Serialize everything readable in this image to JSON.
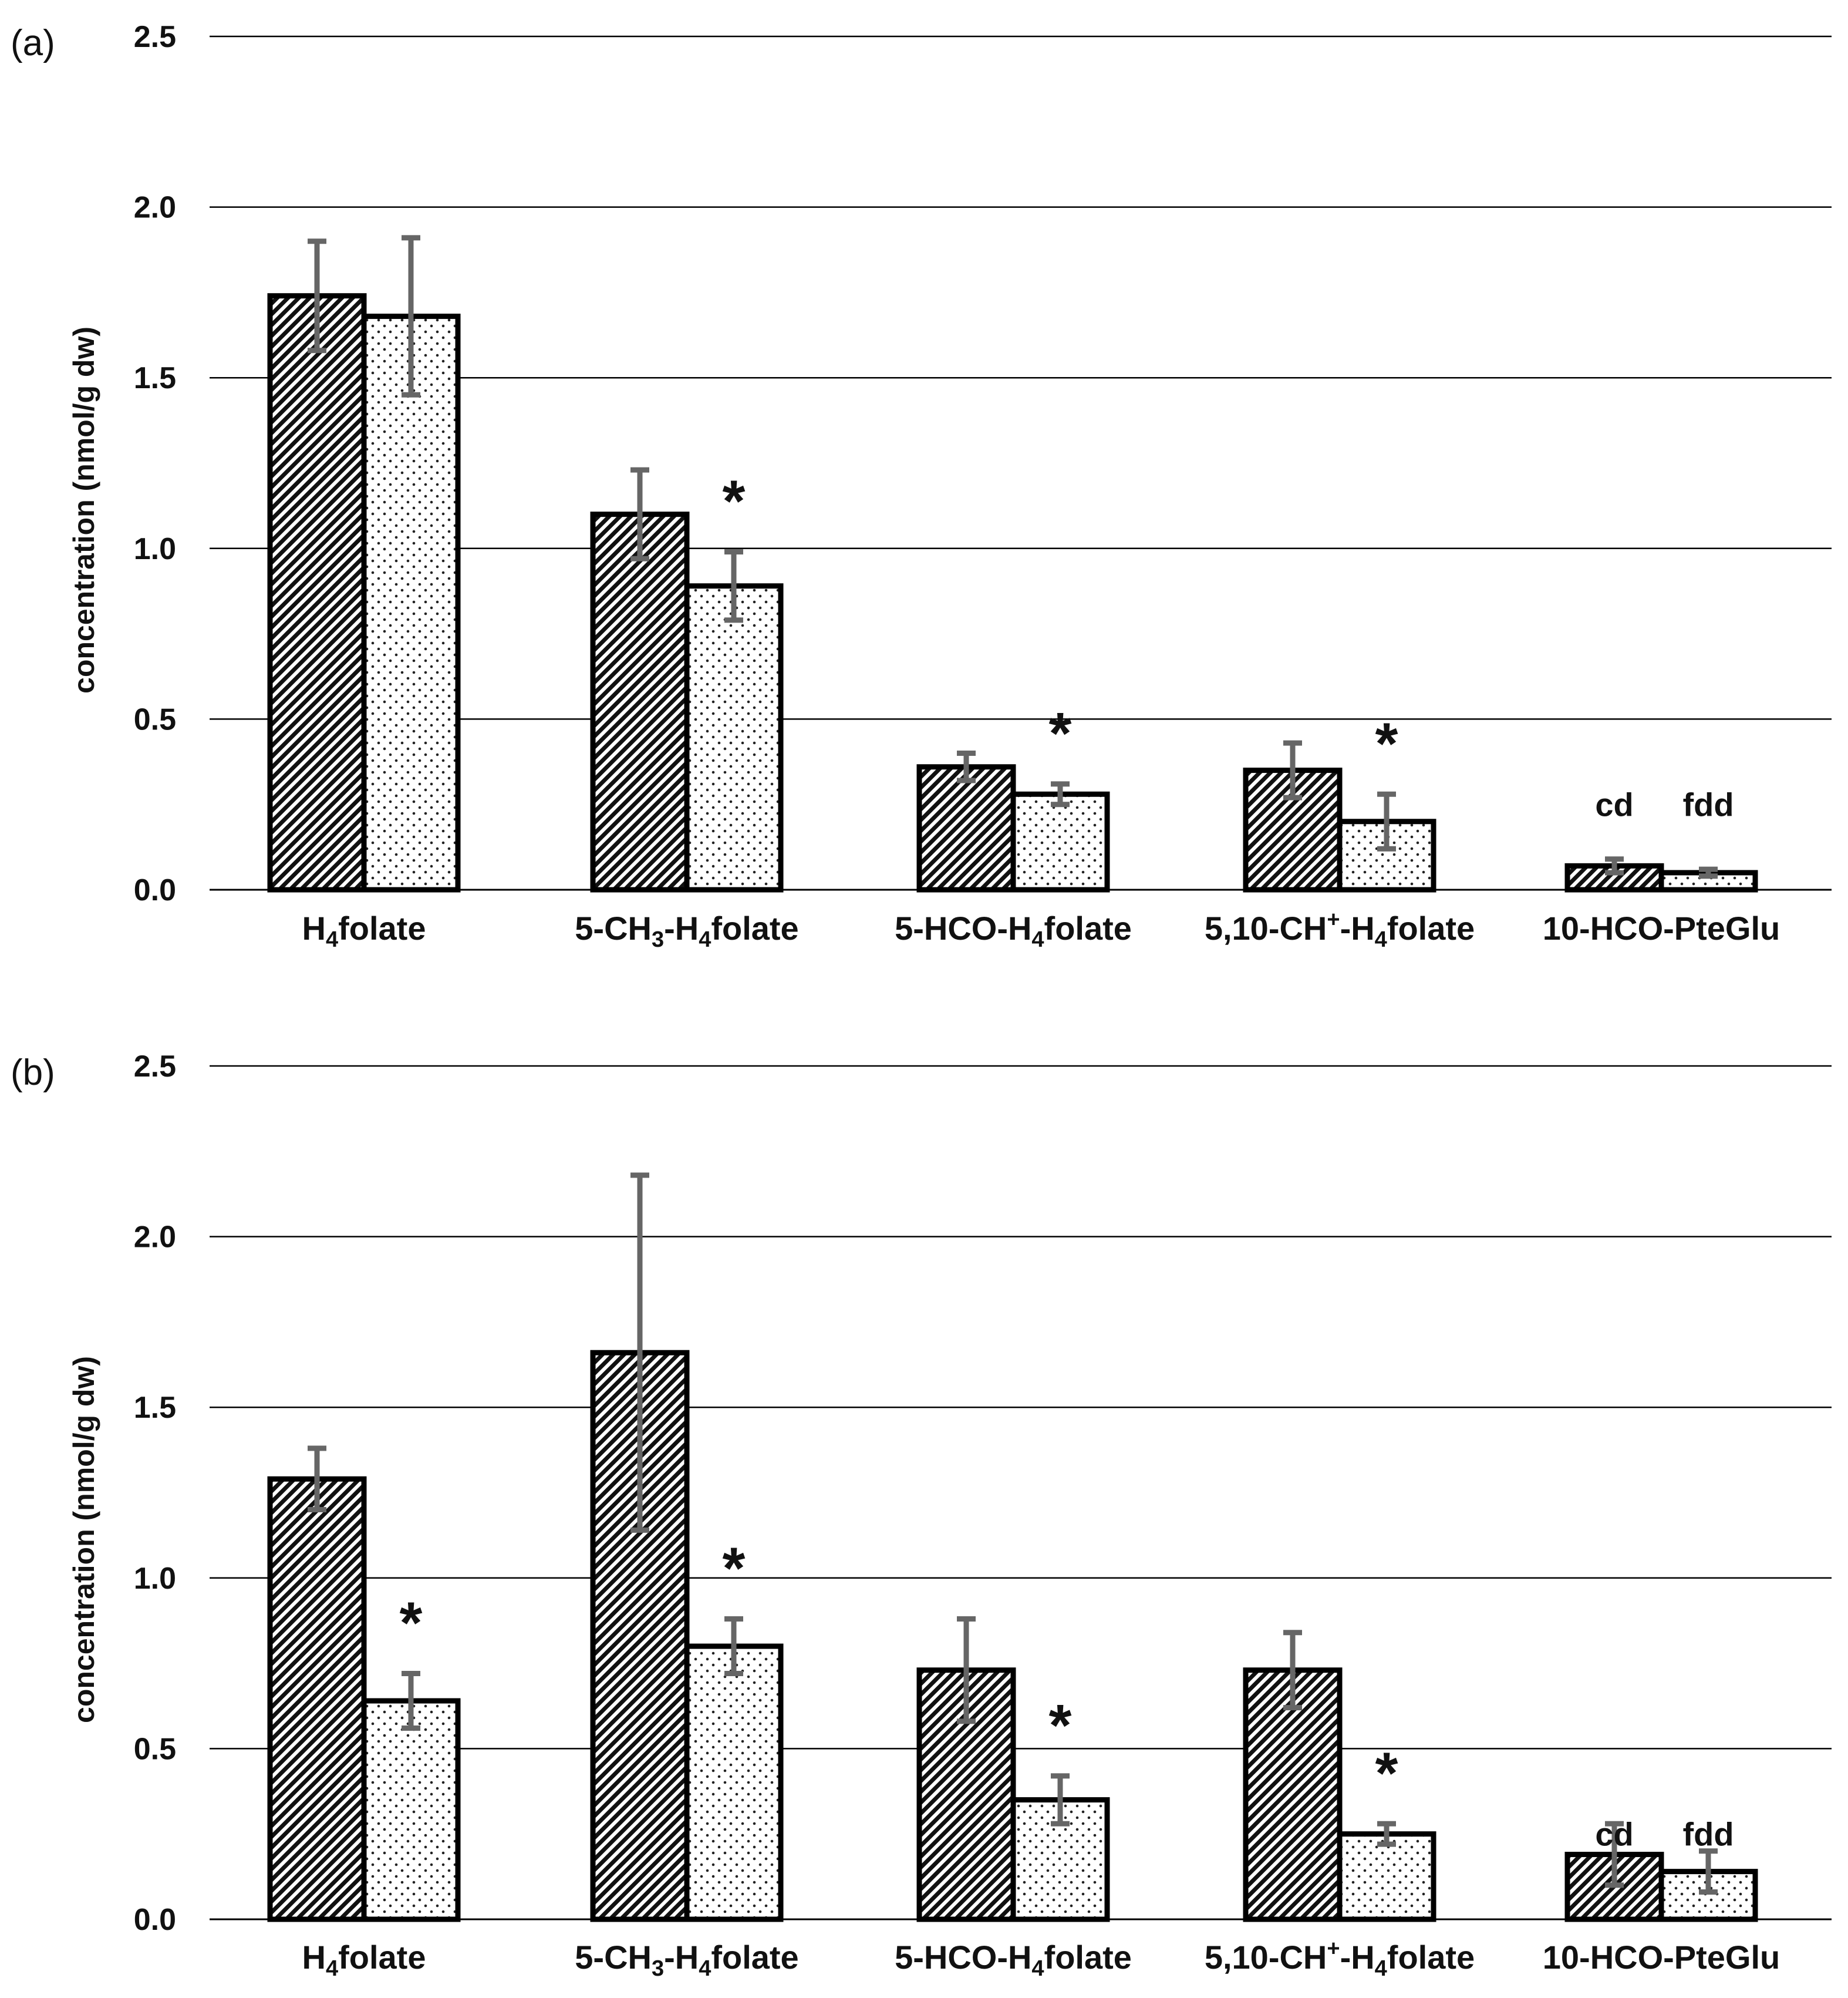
{
  "chart_data": [
    {
      "type": "bar",
      "panel_label": "(a)",
      "ylabel": "concentration (nmol/g dw)",
      "ylim": [
        0,
        2.5
      ],
      "yticks": [
        "0.0",
        "0.5",
        "1.0",
        "1.5",
        "2.0",
        "2.5"
      ],
      "grid": true,
      "categories": [
        {
          "pre": "H",
          "sub1": "4",
          "mid": "folate",
          "sup": "",
          "sub2": "",
          "post": ""
        },
        {
          "pre": "5-CH",
          "sub1": "3",
          "mid": "-H",
          "sup": "",
          "sub2": "4",
          "post": "folate"
        },
        {
          "pre": "5-HCO-H",
          "sub1": "4",
          "mid": "folate",
          "sup": "",
          "sub2": "",
          "post": ""
        },
        {
          "pre": "5,10-CH",
          "sub1": "",
          "mid": "",
          "sup": "+",
          "sub2": "",
          "post": "-H",
          "sub3": "4",
          "post2": "folate"
        },
        {
          "pre": "10-HCO-PteGlu",
          "sub1": "",
          "mid": "",
          "sup": "",
          "sub2": "",
          "post": ""
        }
      ],
      "series": [
        {
          "name": "series 1 (diagonal hatch)",
          "pattern": "diagonal",
          "values": [
            1.74,
            1.1,
            0.36,
            0.35,
            0.07
          ],
          "errors": [
            0.16,
            0.13,
            0.04,
            0.08,
            0.02
          ]
        },
        {
          "name": "series 2 (dotted)",
          "pattern": "dots",
          "values": [
            1.68,
            0.89,
            0.28,
            0.2,
            0.05
          ],
          "errors": [
            0.23,
            0.1,
            0.03,
            0.08,
            0.01
          ]
        }
      ],
      "significance": [
        false,
        true,
        true,
        true,
        false
      ],
      "significance_mark": "*",
      "annotations": [
        {
          "category_index": 4,
          "texts": [
            "cd",
            "fdd"
          ]
        }
      ]
    },
    {
      "type": "bar",
      "panel_label": "(b)",
      "ylabel": "concentration (nmol/g dw)",
      "ylim": [
        0,
        2.5
      ],
      "yticks": [
        "0.0",
        "0.5",
        "1.0",
        "1.5",
        "2.0",
        "2.5"
      ],
      "grid": true,
      "categories": [
        {
          "pre": "H",
          "sub1": "4",
          "mid": "folate",
          "sup": "",
          "sub2": "",
          "post": ""
        },
        {
          "pre": "5-CH",
          "sub1": "3",
          "mid": "-H",
          "sup": "",
          "sub2": "4",
          "post": "folate"
        },
        {
          "pre": "5-HCO-H",
          "sub1": "4",
          "mid": "folate",
          "sup": "",
          "sub2": "",
          "post": ""
        },
        {
          "pre": "5,10-CH",
          "sub1": "",
          "mid": "",
          "sup": "+",
          "sub2": "",
          "post": "-H",
          "sub3": "4",
          "post2": "folate"
        },
        {
          "pre": "10-HCO-PteGlu",
          "sub1": "",
          "mid": "",
          "sup": "",
          "sub2": "",
          "post": ""
        }
      ],
      "series": [
        {
          "name": "series 1 (diagonal hatch)",
          "pattern": "diagonal",
          "values": [
            1.29,
            1.66,
            0.73,
            0.73,
            0.19
          ],
          "errors": [
            0.09,
            0.52,
            0.15,
            0.11,
            0.09
          ]
        },
        {
          "name": "series 2 (dotted)",
          "pattern": "dots",
          "values": [
            0.64,
            0.8,
            0.35,
            0.25,
            0.14
          ],
          "errors": [
            0.08,
            0.08,
            0.07,
            0.03,
            0.06
          ]
        }
      ],
      "significance": [
        true,
        true,
        true,
        true,
        false
      ],
      "significance_mark": "*",
      "annotations": [
        {
          "category_index": 4,
          "texts": [
            "cd",
            "fdd"
          ]
        }
      ]
    }
  ]
}
